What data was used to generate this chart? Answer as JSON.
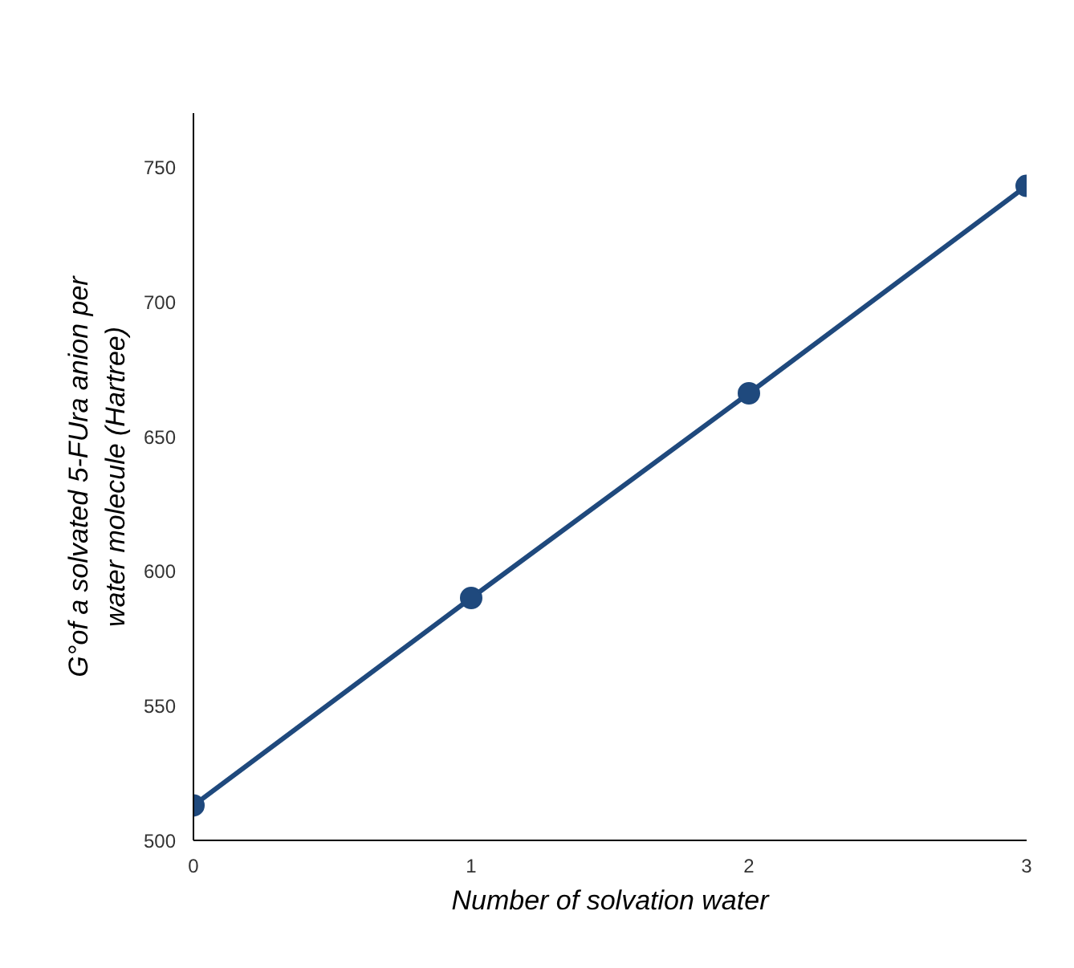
{
  "chart_data": {
    "type": "line",
    "xlabel": "Number of solvation water",
    "ylabel": "G°of a solvated 5-FUra anion per\nwater molecule (Hartree)",
    "x": [
      0,
      1,
      2,
      3
    ],
    "series": [
      {
        "color": "#1f497d",
        "values": [
          513,
          590,
          666,
          743
        ]
      }
    ],
    "xlim": [
      0,
      3
    ],
    "ylim": [
      500,
      770
    ],
    "xticks": [
      0,
      1,
      2,
      3
    ],
    "yticks": [
      500,
      550,
      600,
      650,
      700,
      750
    ],
    "grid": false,
    "marker": "circle",
    "line_style": "solid"
  }
}
